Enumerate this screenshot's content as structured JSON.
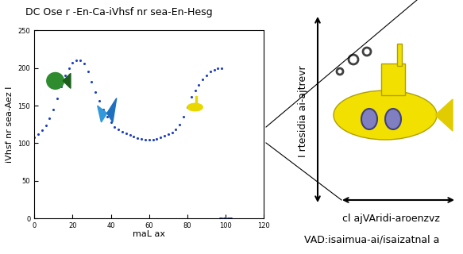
{
  "chart_data": {
    "type": "scatter",
    "title": "DC Ose r -En-Ca-iVhsf nr sea-En-Hesg",
    "x_label": "maL ax",
    "y_label": "iVhsf nr sea-Aez l",
    "x": [
      0,
      2,
      4,
      6,
      8,
      10,
      12,
      14,
      16,
      18,
      20,
      22,
      24,
      26,
      28,
      30,
      32,
      34,
      36,
      38,
      40,
      42,
      44,
      46,
      48,
      50,
      52,
      54,
      56,
      58,
      60,
      62,
      64,
      66,
      68,
      70,
      72,
      74,
      76,
      78,
      80,
      82,
      84,
      86,
      88,
      90,
      92,
      94,
      96,
      98,
      97,
      98,
      99,
      100,
      101,
      102,
      103
    ],
    "values": [
      108,
      112,
      117,
      124,
      133,
      145,
      160,
      175,
      190,
      200,
      207,
      210,
      210,
      206,
      195,
      182,
      168,
      156,
      145,
      135,
      128,
      122,
      118,
      115,
      113,
      111,
      109,
      107,
      106,
      105,
      105,
      105,
      106,
      108,
      110,
      112,
      114,
      118,
      125,
      135,
      148,
      162,
      170,
      178,
      185,
      190,
      195,
      198,
      200,
      200,
      0,
      0,
      0,
      0,
      0,
      0,
      0
    ],
    "color": "#1f3fbf",
    "marker": "dot",
    "xlim": [
      0,
      120
    ],
    "xticks": [
      0,
      20,
      40,
      60,
      80,
      100,
      120
    ],
    "ylim": [
      0,
      250
    ],
    "yticks": [
      0,
      50,
      100,
      150,
      200,
      250
    ],
    "annotations": [
      "I rtesidia ai-ajtrevr",
      "cl ajVAridi-aroenzvz",
      "VAD:isaimua-ai/isaizatnal a"
    ]
  }
}
